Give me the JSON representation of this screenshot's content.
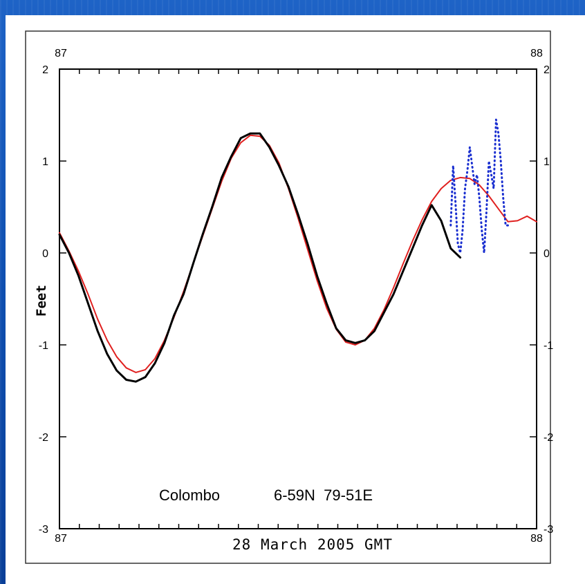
{
  "chart_data": {
    "type": "line",
    "xlabel": "28 March 2005 GMT",
    "ylabel": "Feet",
    "annotation_station": "Colombo",
    "annotation_coords": "6-59N  79-51E",
    "xlim": [
      87,
      88
    ],
    "ylim": [
      -3,
      2
    ],
    "x_tick_labels": [
      "87",
      "88"
    ],
    "y_tick_labels": [
      "2",
      "1",
      "0",
      "-1",
      "-2",
      "-3"
    ],
    "y_tick_values": [
      2,
      1,
      0,
      -1,
      -2,
      -3
    ],
    "series": [
      {
        "color": "#e0201f",
        "style": "solid",
        "x": [
          87.0,
          87.02,
          87.04,
          87.06,
          87.08,
          87.1,
          87.12,
          87.14,
          87.16,
          87.18,
          87.2,
          87.22,
          87.24,
          87.26,
          87.28,
          87.3,
          87.32,
          87.34,
          87.36,
          87.38,
          87.4,
          87.42,
          87.44,
          87.46,
          87.48,
          87.5,
          87.52,
          87.54,
          87.56,
          87.58,
          87.6,
          87.62,
          87.64,
          87.66,
          87.68,
          87.7,
          87.72,
          87.74,
          87.76,
          87.78,
          87.8,
          87.82,
          87.84,
          87.86,
          87.88,
          87.9,
          87.92,
          87.94,
          87.96,
          87.98,
          88.0
        ],
        "y": [
          0.22,
          0.02,
          -0.2,
          -0.45,
          -0.72,
          -0.95,
          -1.13,
          -1.25,
          -1.3,
          -1.27,
          -1.15,
          -0.95,
          -0.7,
          -0.42,
          -0.12,
          0.18,
          0.48,
          0.78,
          1.03,
          1.2,
          1.28,
          1.27,
          1.17,
          0.98,
          0.7,
          0.38,
          0.04,
          -0.3,
          -0.6,
          -0.83,
          -0.97,
          -1.0,
          -0.95,
          -0.82,
          -0.62,
          -0.38,
          -0.12,
          0.13,
          0.36,
          0.56,
          0.7,
          0.79,
          0.82,
          0.81,
          0.74,
          0.62,
          0.48,
          0.34,
          0.35,
          0.4,
          0.34
        ]
      },
      {
        "color": "#000000",
        "style": "solid",
        "x": [
          87.0,
          87.02,
          87.04,
          87.06,
          87.08,
          87.1,
          87.12,
          87.14,
          87.16,
          87.18,
          87.2,
          87.22,
          87.24,
          87.26,
          87.28,
          87.3,
          87.32,
          87.34,
          87.36,
          87.38,
          87.4,
          87.42,
          87.44,
          87.46,
          87.48,
          87.5,
          87.52,
          87.54,
          87.56,
          87.58,
          87.6,
          87.62,
          87.64,
          87.66,
          87.68,
          87.7,
          87.72,
          87.74,
          87.76,
          87.78,
          87.8,
          87.82,
          87.84
        ],
        "y": [
          0.2,
          0.0,
          -0.25,
          -0.55,
          -0.85,
          -1.1,
          -1.28,
          -1.38,
          -1.4,
          -1.35,
          -1.2,
          -0.98,
          -0.68,
          -0.45,
          -0.12,
          0.2,
          0.5,
          0.82,
          1.05,
          1.25,
          1.3,
          1.3,
          1.15,
          0.95,
          0.72,
          0.42,
          0.1,
          -0.25,
          -0.55,
          -0.82,
          -0.95,
          -0.98,
          -0.95,
          -0.85,
          -0.65,
          -0.45,
          -0.2,
          0.05,
          0.3,
          0.52,
          0.35,
          0.05,
          -0.05
        ]
      },
      {
        "color": "#1a2fd0",
        "style": "dotted",
        "x": [
          87.82,
          87.825,
          87.83,
          87.835,
          87.84,
          87.845,
          87.85,
          87.855,
          87.86,
          87.865,
          87.87,
          87.875,
          87.88,
          87.885,
          87.89,
          87.895,
          87.9,
          87.905,
          87.91,
          87.915,
          87.92,
          87.925,
          87.93,
          87.935,
          87.94
        ],
        "y": [
          0.3,
          0.95,
          0.55,
          0.1,
          0.0,
          0.25,
          0.7,
          0.9,
          1.15,
          0.95,
          0.75,
          0.85,
          0.6,
          0.25,
          0.0,
          0.45,
          1.0,
          0.85,
          0.7,
          1.45,
          1.3,
          1.0,
          0.6,
          0.3,
          0.3
        ]
      }
    ]
  }
}
